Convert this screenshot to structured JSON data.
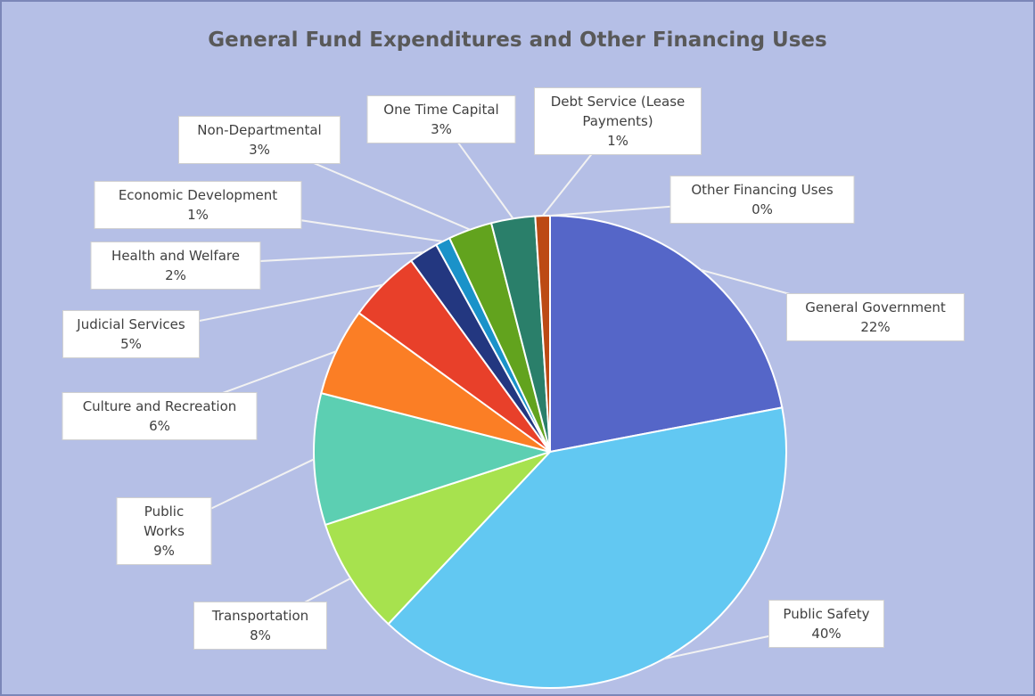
{
  "chart_data": {
    "type": "pie",
    "title": "General Fund Expenditures and Other Financing Uses",
    "categories": [
      "General Government",
      "Public Safety",
      "Transportation",
      "Public Works",
      "Culture and Recreation",
      "Judicial Services",
      "Health and Welfare",
      "Economic Development",
      "Non-Departmental",
      "One Time Capital",
      "Debt Service (Lease Payments)",
      "Other Financing Uses"
    ],
    "values": [
      22,
      40,
      8,
      9,
      6,
      5,
      2,
      1,
      3,
      3,
      1,
      0
    ],
    "value_labels": [
      "22%",
      "40%",
      "8%",
      "9%",
      "6%",
      "5%",
      "2%",
      "1%",
      "3%",
      "3%",
      "1%",
      "0%"
    ],
    "colors": [
      "#5566c8",
      "#62c8f2",
      "#a7e24e",
      "#5ccfb2",
      "#fb7e25",
      "#e8402a",
      "#233780",
      "#1a92c9",
      "#62a31e",
      "#2a7f6a",
      "#bc4a14",
      "#7f7f7f"
    ]
  }
}
